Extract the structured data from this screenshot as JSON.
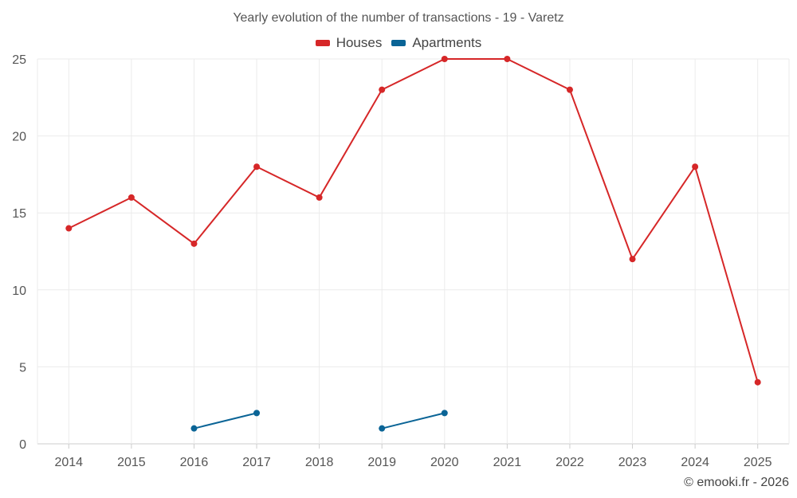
{
  "chart_data": {
    "type": "line",
    "title": "Yearly evolution of the number of transactions - 19 - Varetz",
    "categories": [
      "2014",
      "2015",
      "2016",
      "2017",
      "2018",
      "2019",
      "2020",
      "2021",
      "2022",
      "2023",
      "2024",
      "2025"
    ],
    "series": [
      {
        "name": "Houses",
        "color": "#d62728",
        "values": [
          14,
          16,
          13,
          18,
          16,
          23,
          25,
          25,
          23,
          12,
          18,
          4
        ]
      },
      {
        "name": "Apartments",
        "color": "#0a6496",
        "values": [
          null,
          null,
          1,
          2,
          null,
          1,
          2,
          null,
          null,
          null,
          null,
          null
        ]
      }
    ],
    "yticks": [
      0,
      5,
      10,
      15,
      20,
      25
    ],
    "ylim": [
      0,
      25
    ],
    "xlabel": "",
    "ylabel": "",
    "grid": true,
    "legend": "top-center"
  },
  "credit": "© emooki.fr - 2026"
}
